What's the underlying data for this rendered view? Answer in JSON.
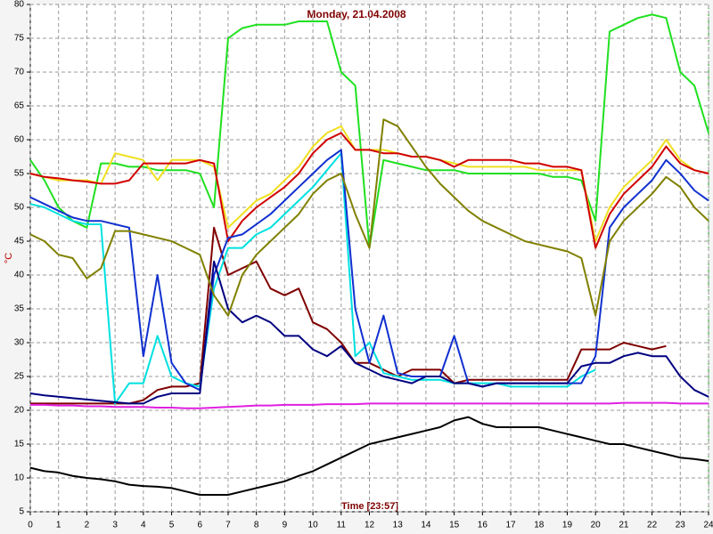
{
  "chart_data": {
    "type": "line",
    "title": "Monday, 21.04.2008",
    "xlabel": "Time [23:57]",
    "ylabel": "°C",
    "xlim": [
      0,
      24
    ],
    "xticks": [
      0,
      1,
      2,
      3,
      4,
      5,
      6,
      7,
      8,
      9,
      10,
      11,
      12,
      13,
      14,
      15,
      16,
      17,
      18,
      19,
      20,
      21,
      22,
      23,
      24
    ],
    "ylim": [
      5,
      80
    ],
    "yticks": [
      5,
      10,
      15,
      20,
      25,
      30,
      35,
      40,
      45,
      50,
      55,
      60,
      65,
      70,
      75,
      80
    ],
    "grid": true,
    "x": [
      0,
      0.5,
      1,
      1.5,
      2,
      2.5,
      3,
      3.5,
      4,
      4.5,
      5,
      5.5,
      6,
      6.5,
      7,
      7.5,
      8,
      8.5,
      9,
      9.5,
      10,
      10.5,
      11,
      11.5,
      12,
      12.5,
      13,
      13.5,
      14,
      14.5,
      15,
      15.5,
      16,
      16.5,
      17,
      17.5,
      18,
      18.5,
      19,
      19.5,
      20,
      20.5,
      21,
      21.5,
      22,
      22.5,
      23,
      23.5,
      24
    ],
    "series": [
      {
        "color": "#20e020",
        "values": [
          57,
          54,
          50,
          48,
          47,
          56.5,
          56.5,
          56,
          56,
          55.5,
          55.5,
          55.5,
          55,
          50,
          75,
          76.5,
          77,
          77,
          77,
          77.5,
          77.5,
          77.5,
          70,
          68,
          44,
          57,
          56.5,
          56,
          55.5,
          55.5,
          55.5,
          55,
          55,
          55,
          55,
          55,
          55,
          54.5,
          54.5,
          54,
          48,
          76,
          77,
          78,
          78.5,
          78,
          70,
          68,
          61
        ]
      },
      {
        "color": "#f0e020",
        "values": [
          55,
          54.5,
          54,
          54,
          54,
          53.5,
          58,
          57.5,
          57,
          54,
          57,
          57,
          57,
          56,
          47,
          49,
          51,
          52,
          54,
          56,
          59,
          61,
          62,
          58.5,
          58.5,
          58.5,
          58,
          57.5,
          57.5,
          57,
          56.5,
          56,
          56,
          56,
          56,
          56,
          55.5,
          55.5,
          55.5,
          55.5,
          45,
          50,
          53,
          55,
          57,
          60,
          57,
          55.5,
          55
        ]
      },
      {
        "color": "#d00000",
        "values": [
          55,
          54.5,
          54.3,
          54,
          53.8,
          53.5,
          53.5,
          54,
          56.5,
          56.5,
          56.5,
          56.5,
          57,
          56.5,
          45,
          48,
          50,
          51.5,
          53,
          55,
          58,
          60,
          61,
          58.5,
          58.5,
          58,
          58,
          57.5,
          57.5,
          57,
          56,
          57,
          57,
          57,
          57,
          56.5,
          56.5,
          56,
          56,
          55.5,
          44,
          49,
          52,
          54,
          56,
          59,
          56.5,
          55.5,
          55
        ]
      },
      {
        "color": "#800000",
        "values": [
          21,
          21,
          21,
          21,
          21,
          21,
          21,
          21,
          21.5,
          23,
          23.5,
          23.5,
          24,
          47,
          40,
          41,
          42,
          38,
          37,
          38,
          33,
          32,
          30,
          27,
          27,
          26,
          25,
          26,
          26,
          26,
          24,
          24.5,
          24.5,
          24.5,
          24.5,
          24.5,
          24.5,
          24.5,
          24.5,
          29,
          29,
          29,
          30,
          29.5,
          29,
          29.5,
          null,
          null,
          null
        ]
      },
      {
        "color": "#00e0e0",
        "values": [
          50.5,
          50,
          49,
          48,
          47.5,
          47.5,
          21,
          24,
          24,
          31,
          25,
          24,
          23.5,
          38,
          44,
          44,
          46,
          47,
          49,
          51,
          53,
          55.5,
          58,
          28,
          30,
          25.5,
          25,
          24.5,
          24.5,
          24.5,
          24,
          24,
          24,
          24,
          23.5,
          23.5,
          23.5,
          23.5,
          23.5,
          25,
          26,
          null,
          null,
          null,
          null,
          null,
          null,
          null,
          null
        ]
      },
      {
        "color": "#1030d0",
        "values": [
          51.5,
          50.5,
          49.5,
          48.5,
          48,
          48,
          47.5,
          47,
          28,
          40,
          27,
          24,
          23,
          40,
          45.5,
          46,
          47.5,
          49,
          51,
          53,
          55,
          57,
          58.5,
          35,
          27,
          34,
          25.5,
          25,
          25,
          25,
          31,
          24,
          23.5,
          24,
          24,
          24,
          24,
          24,
          24,
          24,
          28,
          47,
          50,
          52,
          54,
          57,
          55,
          52.5,
          51
        ]
      },
      {
        "color": "#000080",
        "values": [
          22.5,
          22.2,
          22,
          21.8,
          21.6,
          21.4,
          21.2,
          21,
          21,
          22,
          22.5,
          22.5,
          22.5,
          42,
          35,
          33,
          34,
          33,
          31,
          31,
          29,
          28,
          29.5,
          27,
          26,
          25,
          24.5,
          24,
          25,
          25,
          24,
          24,
          23.5,
          24,
          24,
          24,
          24,
          24,
          24,
          26.5,
          27,
          27,
          28,
          28.5,
          28,
          28,
          25,
          23,
          22
        ]
      },
      {
        "color": "#808000",
        "values": [
          46,
          45,
          43,
          42.5,
          39.5,
          41,
          46.5,
          46.5,
          46,
          45.5,
          45,
          44,
          43,
          37,
          34,
          40,
          43,
          45,
          47,
          49,
          52,
          54,
          55,
          49,
          44,
          63,
          62,
          59,
          56,
          53.5,
          51.5,
          49.5,
          48,
          47,
          46,
          45,
          44.5,
          44,
          43.5,
          42.5,
          34,
          45,
          48,
          50,
          52,
          54.5,
          53,
          50,
          48
        ]
      },
      {
        "color": "#e020e0",
        "values": [
          20.8,
          20.8,
          20.7,
          20.7,
          20.6,
          20.6,
          20.5,
          20.5,
          20.5,
          20.4,
          20.4,
          20.3,
          20.3,
          20.4,
          20.5,
          20.6,
          20.7,
          20.7,
          20.8,
          20.8,
          20.8,
          20.9,
          20.9,
          20.9,
          21,
          21,
          21,
          21,
          21,
          21,
          21,
          21,
          21,
          21,
          21,
          21,
          21,
          21,
          21,
          21,
          21,
          21,
          21.1,
          21.1,
          21.1,
          21.1,
          21,
          21,
          21
        ]
      },
      {
        "color": "#000000",
        "values": [
          11.5,
          11,
          10.8,
          10.3,
          10,
          9.8,
          9.5,
          9,
          8.8,
          8.7,
          8.5,
          8,
          7.5,
          7.5,
          7.5,
          8,
          8.5,
          9,
          9.5,
          10.3,
          11,
          12,
          13,
          14,
          15,
          15.5,
          16,
          16.5,
          17,
          17.5,
          18.5,
          19,
          18,
          17.5,
          17.5,
          17.5,
          17.5,
          17,
          16.5,
          16,
          15.5,
          15,
          15,
          14.5,
          14,
          13.5,
          13,
          12.8,
          12.5
        ]
      }
    ]
  }
}
